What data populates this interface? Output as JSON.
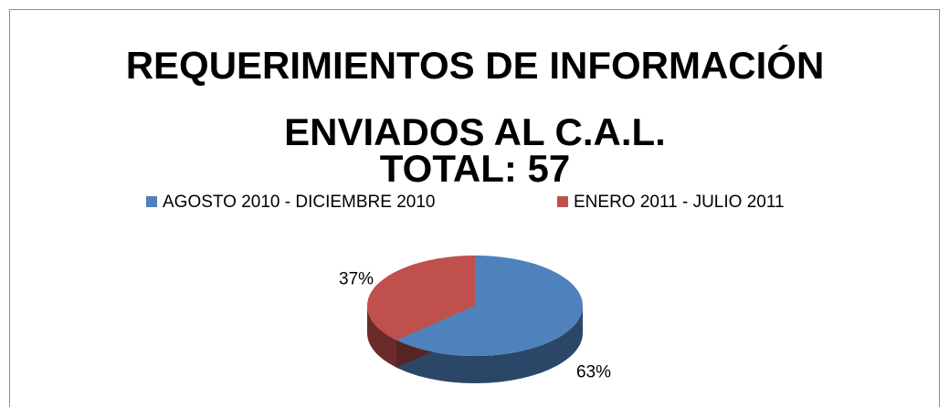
{
  "chart_data": {
    "type": "pie",
    "title": [
      "REQUERIMIENTOS DE INFORMACIÓN",
      "ENVIADOS AL C.A.L.",
      "TOTAL: 57"
    ],
    "categories": [
      "AGOSTO 2010 - DICIEMBRE 2010",
      "ENERO 2011 - JULIO 2011"
    ],
    "values": [
      63,
      37
    ],
    "value_labels": [
      "63%",
      "37%"
    ],
    "colors": [
      "#4f81bd",
      "#c0504d"
    ],
    "legend": "top"
  }
}
